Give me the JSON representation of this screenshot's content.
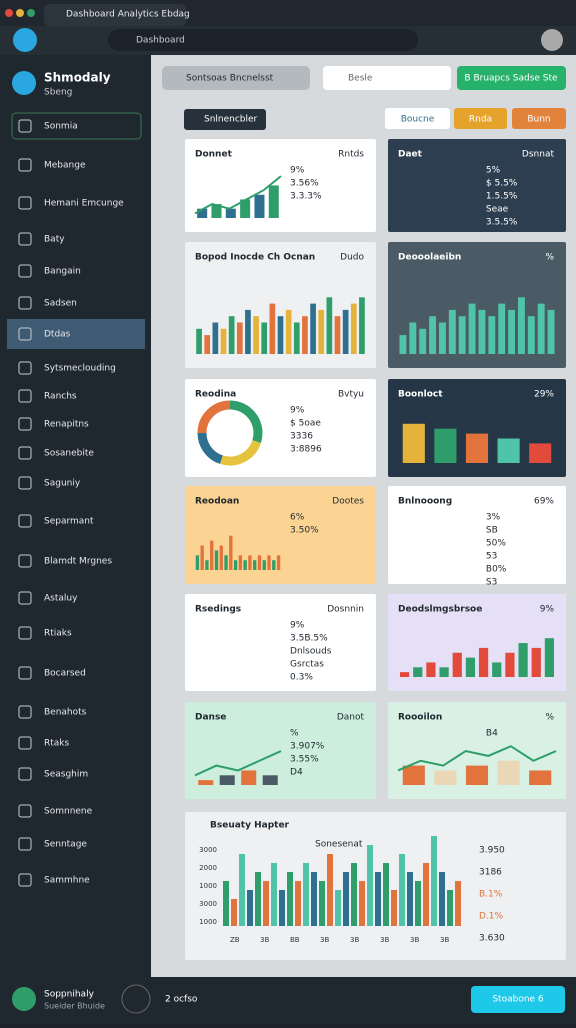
{
  "browser": {
    "tab_title": "Dashboard Analytics Ebdag",
    "address": "Dashboard"
  },
  "sidebar": {
    "brand": "Shmodaly",
    "brand_sub": "Sbeng",
    "items": [
      "Sonmia",
      "Mebange",
      "Hemani Emcunge",
      "Baty",
      "Bangain",
      "Sadsen",
      "Dtdas",
      "Sytsmeclouding",
      "Ranchs",
      "Renapitns",
      "Sosanebite",
      "Saguniy",
      "Separmant",
      "Blamdt Mrgnes",
      "Astaluy",
      "Rtiaks",
      "Bocarsed",
      "Benahots",
      "Rtaks",
      "Seasghim",
      "Somnnene",
      "Senntage",
      "Sammhne"
    ],
    "user": "Soppnihaly",
    "user_sub": "Sueider Bhuide"
  },
  "toolbar": {
    "dropdown": "Sontsoas Bncnelsst",
    "search": "Besle",
    "button": "B Bruapcs Sadse Ste"
  },
  "filters": {
    "label": "Snlnencbler",
    "chips": [
      "Boucne",
      "Rnda",
      "Bunn"
    ]
  },
  "cards": [
    {
      "title": "Donnet",
      "texts": [
        "Rntds",
        "9%",
        "3.56%",
        "3.3.3%"
      ],
      "bars": [
        2,
        3,
        2,
        4,
        5,
        7
      ],
      "ylim": [
        0,
        10
      ],
      "bar_colors": [
        "#2f6f8f",
        "#2f9e6a"
      ],
      "line": [
        1,
        3,
        2,
        4,
        6,
        9
      ],
      "bg": "#ffffff",
      "dark": false
    },
    {
      "title": "Daet",
      "texts": [
        "Dsnnat",
        "5%",
        "$ 5.5%",
        "1.5.5%",
        "Seae",
        "3.5.5%"
      ],
      "bars": [],
      "ylim": [
        0,
        10
      ],
      "bar_colors": [
        "#2f6f8f"
      ],
      "bg": "#2d3e50",
      "dark": true
    },
    {
      "title": "Bopod Inocde Ch Ocnan",
      "texts": [
        "Dudo"
      ],
      "bars": [
        4,
        3,
        5,
        4,
        6,
        5,
        7,
        6,
        5,
        8,
        6,
        7,
        5,
        6,
        8,
        7,
        9,
        6,
        7,
        8,
        9
      ],
      "ylim": [
        0,
        10
      ],
      "bar_colors": [
        "#2f9e6a",
        "#e2733c",
        "#2f6f8f",
        "#e5b33c"
      ],
      "bg": "#eef0f2",
      "dark": false
    },
    {
      "title": "Deooolaeibn",
      "texts": [
        "%"
      ],
      "bars": [
        3,
        5,
        4,
        6,
        5,
        7,
        6,
        8,
        7,
        6,
        8,
        7,
        9,
        6,
        8,
        7
      ],
      "ylim": [
        0,
        10
      ],
      "bar_colors": [
        "#4fc4a8"
      ],
      "bg": "#4b5b66",
      "dark": true
    },
    {
      "title": "Reodina",
      "texts": [
        "Bvtyu",
        "9%",
        "$ 5oae",
        "3336",
        "3:8896"
      ],
      "donut": [
        30,
        25,
        20,
        25
      ],
      "donut_colors": [
        "#2f9e6a",
        "#e5c33c",
        "#2f6f8f",
        "#e2733c"
      ],
      "bars": [],
      "ylim": [
        0,
        10
      ],
      "bar_colors": [],
      "bg": "#ffffff",
      "dark": false
    },
    {
      "title": "Boonloct",
      "texts": [
        "29%"
      ],
      "bars": [
        8,
        7,
        6,
        5,
        4
      ],
      "ylim": [
        0,
        10
      ],
      "bar_colors": [
        "#e5b33c",
        "#2f9e6a",
        "#e2733c",
        "#4fc4a8",
        "#e24a3c"
      ],
      "bg": "#253646",
      "dark": true
    },
    {
      "title": "Reodoan",
      "texts": [
        "Dootes",
        "6%",
        "3.50%"
      ],
      "bars": [
        3,
        5,
        2,
        6,
        4,
        5,
        3,
        7,
        2,
        3,
        2,
        3,
        2,
        3,
        2,
        3,
        2,
        3
      ],
      "ylim": [
        0,
        10
      ],
      "bar_colors": [
        "#2f9e6a",
        "#e2733c"
      ],
      "bg": "#fbd494",
      "dark": false
    },
    {
      "title": "Bnlnooong",
      "texts": [
        "69%",
        "3%",
        "SB",
        "50%",
        "53",
        "B0%",
        "S3"
      ],
      "bars": [],
      "ylim": [
        0,
        10
      ],
      "bar_colors": [],
      "bg": "#ffffff",
      "dark": false
    },
    {
      "title": "Rsedings",
      "texts": [
        "Dosnnin",
        "9%",
        "3.5B.5%",
        "Dnlsouds",
        "Gsrctas",
        "0.3%"
      ],
      "bars": [],
      "ylim": [
        0,
        10
      ],
      "bar_colors": [],
      "bg": "#ffffff",
      "dark": false
    },
    {
      "title": "Deodslmgsbrsoe",
      "texts": [
        "9%"
      ],
      "bars": [
        1,
        2,
        3,
        2,
        5,
        4,
        6,
        3,
        5,
        7,
        6,
        8
      ],
      "ylim": [
        0,
        10
      ],
      "bar_colors": [
        "#e24a3c",
        "#2f9e6a"
      ],
      "bg": "#e6e0f6",
      "dark": false
    },
    {
      "title": "Danse",
      "texts": [
        "Danot",
        "%",
        "3.907%",
        "3.55%",
        "D4"
      ],
      "line": [
        2,
        4,
        3,
        5,
        7
      ],
      "bars": [
        1,
        2,
        3,
        2
      ],
      "ylim": [
        0,
        10
      ],
      "bar_colors": [
        "#e2733c",
        "#4b5b66"
      ],
      "bg": "#cdeedd",
      "dark": false
    },
    {
      "title": "Roooilon",
      "texts": [
        "%",
        "B4"
      ],
      "line": [
        3,
        5,
        4,
        7,
        6,
        8,
        5,
        7
      ],
      "bars": [
        4,
        3,
        4,
        5,
        3
      ],
      "ylim": [
        0,
        10
      ],
      "bar_colors": [
        "#e2733c",
        "#e9d7b6"
      ],
      "bg": "#d9f1e4",
      "dark": false
    }
  ],
  "big": {
    "title": "Bseuaty Hapter",
    "legend": "Sonesenat",
    "ylabels": [
      "3000",
      "2000",
      "1000",
      "3000",
      "1000"
    ],
    "xlabels": [
      "ZB",
      "3B",
      "BB",
      "3B",
      "3B",
      "3B",
      "3B",
      "3B"
    ],
    "bars": [
      5,
      3,
      8,
      4,
      6,
      5,
      7,
      4,
      6,
      5,
      7,
      6,
      5,
      8,
      4,
      6,
      7,
      5,
      9,
      6,
      7,
      4,
      8,
      6,
      5,
      7,
      10,
      6,
      4,
      5
    ],
    "ylim": [
      0,
      10
    ],
    "bar_colors": [
      "#2f9e6a",
      "#e2733c",
      "#4fc4a8",
      "#2f6f8f"
    ],
    "side": [
      "3.950",
      "3186",
      "B.1%",
      "D.1%",
      "3.630"
    ]
  },
  "footer": {
    "pager": "2 ocfso",
    "button": "Stoabone 6"
  }
}
